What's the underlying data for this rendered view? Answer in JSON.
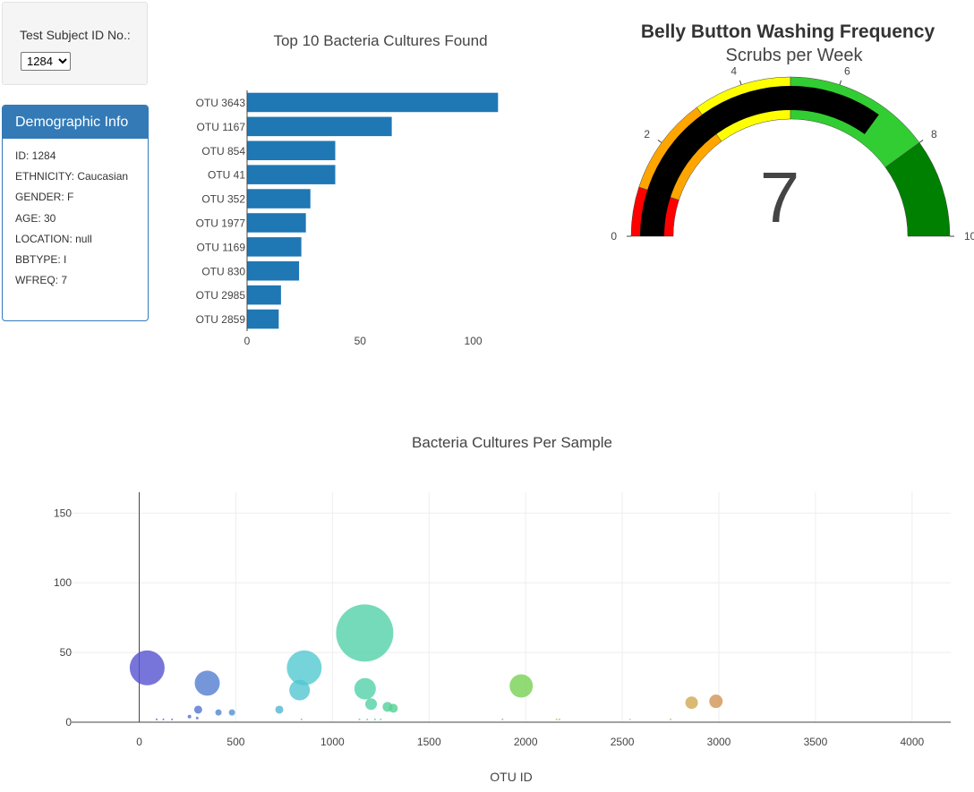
{
  "selector": {
    "label": "Test Subject ID No.:",
    "selected": "1284"
  },
  "demographics": {
    "title": "Demographic Info",
    "rows": [
      "ID: 1284",
      "ETHNICITY: Caucasian",
      "GENDER: F",
      "AGE: 30",
      "LOCATION: null",
      "BBTYPE: I",
      "WFREQ: 7"
    ]
  },
  "chart_data": [
    {
      "type": "bar",
      "orientation": "horizontal",
      "title": "Top 10 Bacteria Cultures Found",
      "categories": [
        "OTU 3643",
        "OTU 1167",
        "OTU 854",
        "OTU 41",
        "OTU 352",
        "OTU 1977",
        "OTU 1169",
        "OTU 830",
        "OTU 2985",
        "OTU 2859"
      ],
      "values": [
        111,
        64,
        39,
        39,
        28,
        26,
        24,
        23,
        15,
        14
      ],
      "xlim": [
        0,
        118
      ],
      "xticks": [
        0,
        50,
        100
      ],
      "color": "#1f77b4"
    },
    {
      "type": "gauge",
      "title": "Belly Button Washing Frequency",
      "subtitle": "Scrubs per Week",
      "value": 7,
      "range": [
        0,
        10
      ],
      "ticks": [
        0,
        2,
        4,
        6,
        8,
        10
      ],
      "steps": [
        {
          "range": [
            0,
            1
          ],
          "color": "#ff0000"
        },
        {
          "range": [
            1,
            3
          ],
          "color": "#ffa500"
        },
        {
          "range": [
            3,
            5
          ],
          "color": "#ffff00"
        },
        {
          "range": [
            5,
            8
          ],
          "color": "#32cd32"
        },
        {
          "range": [
            8,
            10
          ],
          "color": "#008000"
        }
      ],
      "bar_color": "#000000"
    },
    {
      "type": "scatter",
      "subtype": "bubble",
      "title": "Bacteria Cultures Per Sample",
      "xlabel": "OTU ID",
      "ylabel": "",
      "xlim": [
        -350,
        4200
      ],
      "ylim": [
        0,
        165
      ],
      "xticks": [
        0,
        500,
        1000,
        1500,
        2000,
        2500,
        3000,
        3500,
        4000
      ],
      "yticks": [
        0,
        50,
        100,
        150
      ],
      "grid": true,
      "points": [
        {
          "x": 41,
          "y": 39
        },
        {
          "x": 352,
          "y": 28
        },
        {
          "x": 854,
          "y": 39
        },
        {
          "x": 830,
          "y": 23
        },
        {
          "x": 1167,
          "y": 64
        },
        {
          "x": 1169,
          "y": 24
        },
        {
          "x": 1977,
          "y": 26
        },
        {
          "x": 2859,
          "y": 14
        },
        {
          "x": 2985,
          "y": 15
        },
        {
          "x": 305,
          "y": 9
        },
        {
          "x": 410,
          "y": 7
        },
        {
          "x": 480,
          "y": 7
        },
        {
          "x": 725,
          "y": 9
        },
        {
          "x": 1200,
          "y": 13
        },
        {
          "x": 1285,
          "y": 11
        },
        {
          "x": 1315,
          "y": 10
        },
        {
          "x": 260,
          "y": 4
        },
        {
          "x": 300,
          "y": 3
        },
        {
          "x": 90,
          "y": 2
        },
        {
          "x": 125,
          "y": 2
        },
        {
          "x": 170,
          "y": 2
        },
        {
          "x": 840,
          "y": 2
        },
        {
          "x": 1140,
          "y": 2
        },
        {
          "x": 1180,
          "y": 2
        },
        {
          "x": 1220,
          "y": 2
        },
        {
          "x": 1250,
          "y": 2
        },
        {
          "x": 1880,
          "y": 2
        },
        {
          "x": 2160,
          "y": 2
        },
        {
          "x": 2175,
          "y": 2
        },
        {
          "x": 2540,
          "y": 2
        },
        {
          "x": 2750,
          "y": 2
        }
      ]
    }
  ]
}
